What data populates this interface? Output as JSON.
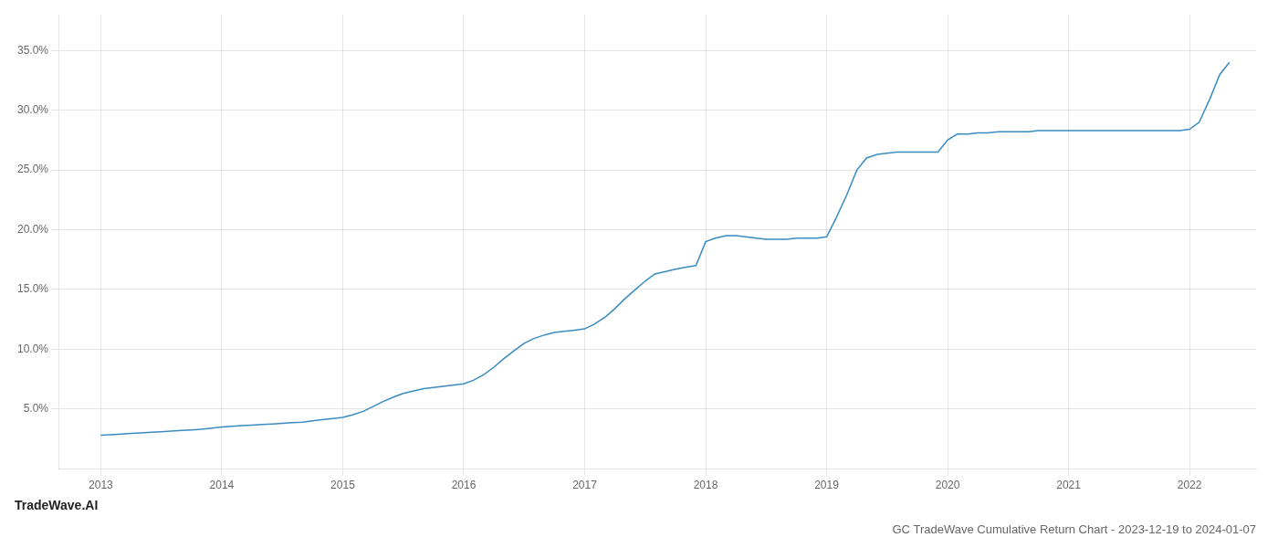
{
  "chart_data": {
    "type": "line",
    "title": "GC TradeWave Cumulative Return Chart - 2023-12-19 to 2024-01-07",
    "annotations": [
      "TradeWave.AI"
    ],
    "x": [
      2013.0,
      2013.08,
      2013.17,
      2013.25,
      2013.33,
      2013.42,
      2013.5,
      2013.58,
      2013.67,
      2013.75,
      2013.83,
      2013.92,
      2014.0,
      2014.08,
      2014.17,
      2014.25,
      2014.33,
      2014.42,
      2014.5,
      2014.58,
      2014.67,
      2014.75,
      2014.83,
      2014.92,
      2015.0,
      2015.08,
      2015.17,
      2015.25,
      2015.33,
      2015.42,
      2015.5,
      2015.58,
      2015.67,
      2015.75,
      2015.83,
      2015.92,
      2016.0,
      2016.08,
      2016.17,
      2016.25,
      2016.33,
      2016.42,
      2016.5,
      2016.58,
      2016.67,
      2016.75,
      2016.83,
      2016.92,
      2017.0,
      2017.08,
      2017.17,
      2017.25,
      2017.33,
      2017.42,
      2017.5,
      2017.58,
      2017.67,
      2017.75,
      2017.83,
      2017.92,
      2018.0,
      2018.08,
      2018.17,
      2018.25,
      2018.33,
      2018.42,
      2018.5,
      2018.58,
      2018.67,
      2018.75,
      2018.83,
      2018.92,
      2019.0,
      2019.08,
      2019.17,
      2019.25,
      2019.33,
      2019.42,
      2019.5,
      2019.58,
      2019.67,
      2019.75,
      2019.83,
      2019.92,
      2020.0,
      2020.08,
      2020.17,
      2020.25,
      2020.33,
      2020.42,
      2020.5,
      2020.58,
      2020.67,
      2020.75,
      2020.83,
      2020.92,
      2021.0,
      2021.08,
      2021.17,
      2021.25,
      2021.33,
      2021.42,
      2021.5,
      2021.58,
      2021.67,
      2021.75,
      2021.83,
      2021.92,
      2022.0,
      2022.08,
      2022.17,
      2022.25,
      2022.33
    ],
    "values": [
      2.8,
      2.85,
      2.9,
      2.95,
      3.0,
      3.05,
      3.1,
      3.15,
      3.2,
      3.25,
      3.3,
      3.4,
      3.5,
      3.55,
      3.6,
      3.65,
      3.7,
      3.75,
      3.8,
      3.85,
      3.9,
      4.0,
      4.1,
      4.2,
      4.3,
      4.5,
      4.8,
      5.2,
      5.6,
      6.0,
      6.3,
      6.5,
      6.7,
      6.8,
      6.9,
      7.0,
      7.1,
      7.4,
      7.9,
      8.5,
      9.2,
      9.9,
      10.5,
      10.9,
      11.2,
      11.4,
      11.5,
      11.6,
      11.7,
      12.1,
      12.7,
      13.4,
      14.2,
      15.0,
      15.7,
      16.3,
      16.5,
      16.7,
      16.85,
      17.0,
      19.0,
      19.3,
      19.5,
      19.5,
      19.4,
      19.3,
      19.2,
      19.2,
      19.2,
      19.3,
      19.3,
      19.3,
      19.4,
      21.0,
      23.0,
      25.0,
      26.0,
      26.3,
      26.4,
      26.5,
      26.5,
      26.5,
      26.5,
      26.5,
      27.5,
      28.0,
      28.0,
      28.1,
      28.1,
      28.2,
      28.2,
      28.2,
      28.2,
      28.3,
      28.3,
      28.3,
      28.3,
      28.3,
      28.3,
      28.3,
      28.3,
      28.3,
      28.3,
      28.3,
      28.3,
      28.3,
      28.3,
      28.3,
      28.4,
      29.0,
      31.0,
      33.0,
      34.0
    ],
    "color": "#3a8bbf",
    "xlim": [
      2012.65,
      2022.55
    ],
    "xticks": [
      2013,
      2014,
      2015,
      2016,
      2017,
      2018,
      2019,
      2020,
      2021,
      2022
    ],
    "ylim": [
      0,
      38
    ],
    "yticks": [
      {
        "value": 5.0,
        "label": "5.0%"
      },
      {
        "value": 10.0,
        "label": "10.0%"
      },
      {
        "value": 15.0,
        "label": "15.0%"
      },
      {
        "value": 20.0,
        "label": "20.0%"
      },
      {
        "value": 25.0,
        "label": "25.0%"
      },
      {
        "value": 30.0,
        "label": "30.0%"
      },
      {
        "value": 35.0,
        "label": "35.0%"
      }
    ],
    "grid": true
  }
}
